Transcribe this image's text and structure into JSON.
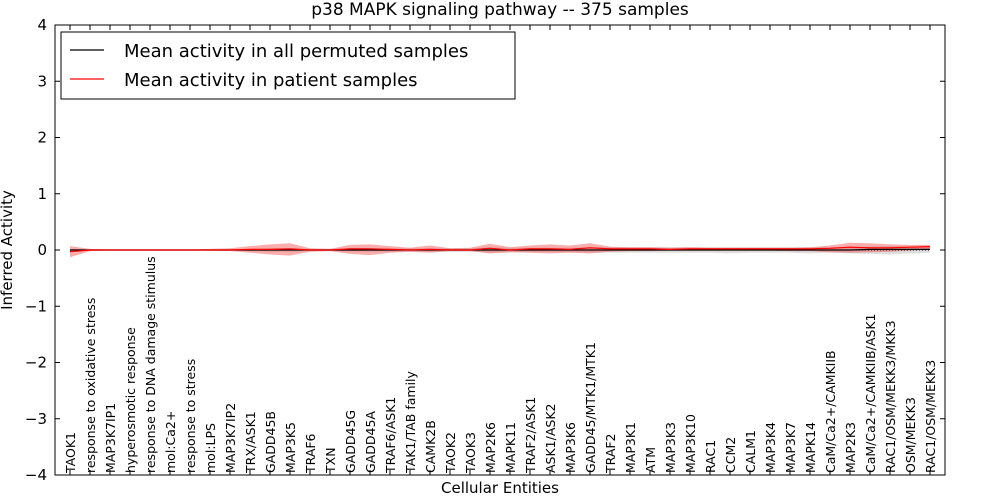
{
  "chart_data": {
    "type": "line",
    "title": "p38 MAPK signaling pathway -- 375 samples",
    "xlabel": "Cellular Entities",
    "ylabel": "Inferred Activity",
    "ylim": [
      -4,
      4
    ],
    "yticks": [
      "−4",
      "−3",
      "−2",
      "−1",
      "0",
      "1",
      "2",
      "3",
      "4"
    ],
    "ytick_values": [
      -4,
      -3,
      -2,
      -1,
      0,
      1,
      2,
      3,
      4
    ],
    "legend_position": "top-left",
    "categories": [
      "TAOK1",
      "response to oxidative stress",
      "MAP3K7IP1",
      "hyperosmotic response",
      "response to DNA damage stimulus",
      "mol:Ca2+",
      "response to stress",
      "mol:LPS",
      "MAP3K7IP2",
      "TRX/ASK1",
      "GADD45B",
      "MAP3K5",
      "TRAF6",
      "TXN",
      "GADD45G",
      "GADD45A",
      "TRAF6/ASK1",
      "TAK1/TAB family",
      "CAMK2B",
      "TAOK2",
      "TAOK3",
      "MAP2K6",
      "MAPK11",
      "TRAF2/ASK1",
      "ASK1/ASK2",
      "MAP3K6",
      "GADD45/MTK1/MTK1",
      "TRAF2",
      "MAP3K1",
      "ATM",
      "MAP3K3",
      "MAP3K10",
      "RAC1",
      "CCM2",
      "CALM1",
      "MAP3K4",
      "MAP3K7",
      "MAPK14",
      "CaM/Ca2+/CAMKIIB",
      "MAP2K3",
      "CaM/Ca2+/CAMKIIB/ASK1",
      "RAC1/OSM/MEKK3/MKK3",
      "OSM/MEKK3",
      "RAC1/OSM/MEKK3"
    ],
    "series": [
      {
        "name": "Mean activity in all permuted samples",
        "color": "#000000",
        "values": [
          0,
          0,
          0,
          0,
          0,
          0,
          0,
          0,
          0,
          0,
          0,
          0,
          0,
          0,
          0,
          0,
          0,
          0,
          0,
          0,
          0,
          0,
          0,
          0,
          0,
          0,
          0,
          0,
          0,
          0,
          0,
          0,
          0,
          0,
          0,
          0,
          0,
          0,
          0,
          0,
          0.01,
          0.01,
          0.01,
          0.01
        ],
        "band_lower": [
          -0.02,
          -0.01,
          -0.01,
          -0.01,
          -0.01,
          -0.01,
          -0.01,
          -0.01,
          -0.01,
          -0.02,
          -0.03,
          -0.03,
          -0.02,
          -0.02,
          -0.03,
          -0.03,
          -0.03,
          -0.03,
          -0.03,
          -0.03,
          -0.03,
          -0.05,
          -0.04,
          -0.04,
          -0.04,
          -0.04,
          -0.05,
          -0.05,
          -0.05,
          -0.05,
          -0.05,
          -0.05,
          -0.05,
          -0.06,
          -0.05,
          -0.05,
          -0.05,
          -0.06,
          -0.05,
          -0.06,
          -0.07,
          -0.08,
          -0.06,
          -0.05
        ],
        "band_upper": [
          0.02,
          0.01,
          0.01,
          0.01,
          0.01,
          0.01,
          0.01,
          0.01,
          0.01,
          0.02,
          0.03,
          0.03,
          0.02,
          0.02,
          0.03,
          0.03,
          0.03,
          0.03,
          0.03,
          0.03,
          0.03,
          0.05,
          0.04,
          0.04,
          0.04,
          0.04,
          0.05,
          0.05,
          0.05,
          0.05,
          0.05,
          0.05,
          0.05,
          0.05,
          0.05,
          0.05,
          0.05,
          0.05,
          0.05,
          0.06,
          0.06,
          0.07,
          0.06,
          0.05
        ]
      },
      {
        "name": "Mean activity in patient samples",
        "color": "#ff0000",
        "values": [
          -0.03,
          0,
          0,
          0,
          0,
          0,
          0,
          0,
          0,
          0.01,
          0.01,
          0.02,
          0,
          0,
          0.02,
          0.02,
          0.01,
          0,
          0.01,
          0,
          0,
          0.03,
          0,
          0.02,
          0.02,
          0.01,
          0.04,
          0.02,
          0.02,
          0.02,
          0.01,
          0.02,
          0.02,
          0.02,
          0.02,
          0.02,
          0.02,
          0.02,
          0.03,
          0.05,
          0.04,
          0.04,
          0.05,
          0.06
        ],
        "band_lower": [
          -0.13,
          -0.02,
          -0.01,
          -0.01,
          -0.01,
          -0.01,
          -0.01,
          -0.01,
          -0.02,
          -0.05,
          -0.08,
          -0.1,
          -0.03,
          -0.02,
          -0.07,
          -0.09,
          -0.05,
          -0.03,
          -0.05,
          -0.02,
          -0.02,
          -0.06,
          -0.04,
          -0.05,
          -0.06,
          -0.05,
          -0.06,
          -0.03,
          -0.02,
          -0.02,
          -0.01,
          -0.01,
          -0.01,
          -0.01,
          -0.01,
          -0.01,
          -0.02,
          -0.02,
          -0.04,
          -0.05,
          -0.04,
          -0.03,
          -0.01,
          0.02
        ],
        "band_upper": [
          0.07,
          0.02,
          0.01,
          0.01,
          0.01,
          0.01,
          0.01,
          0.02,
          0.03,
          0.07,
          0.1,
          0.12,
          0.03,
          0.02,
          0.09,
          0.1,
          0.07,
          0.04,
          0.08,
          0.03,
          0.04,
          0.11,
          0.05,
          0.08,
          0.1,
          0.08,
          0.12,
          0.06,
          0.05,
          0.05,
          0.04,
          0.05,
          0.04,
          0.04,
          0.04,
          0.04,
          0.04,
          0.05,
          0.08,
          0.13,
          0.12,
          0.1,
          0.09,
          0.09
        ]
      }
    ]
  }
}
